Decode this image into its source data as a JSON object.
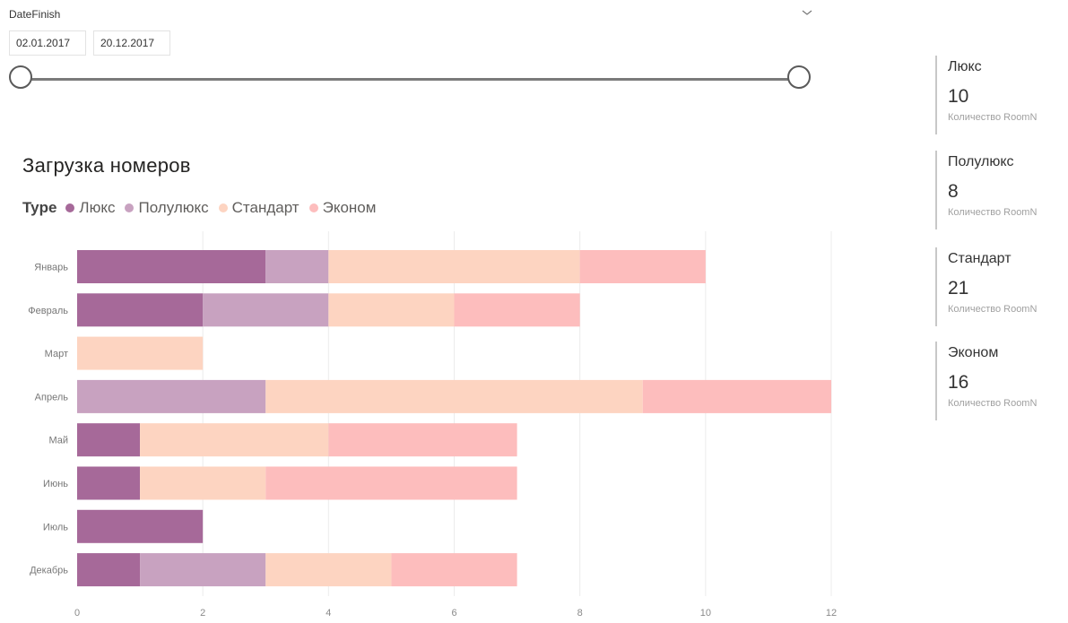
{
  "slicer": {
    "title": "DateFinish",
    "start_date": "02.01.2017",
    "end_date": "20.12.2017",
    "range_selected": [
      0,
      1
    ]
  },
  "chart_data": {
    "type": "bar",
    "orientation": "horizontal",
    "stacked": true,
    "title": "Загрузка номеров",
    "legend_title": "Type",
    "legend_position": "top-left",
    "categories": [
      "Январь",
      "Февраль",
      "Март",
      "Апрель",
      "Май",
      "Июнь",
      "Июль",
      "Декабрь"
    ],
    "series": [
      {
        "name": "Люкс",
        "color": "#a66999",
        "values": [
          3,
          2,
          0,
          0,
          1,
          1,
          2,
          1
        ]
      },
      {
        "name": "Полулюкс",
        "color": "#c8a2c0",
        "values": [
          1,
          2,
          0,
          3,
          0,
          0,
          0,
          2
        ]
      },
      {
        "name": "Стандарт",
        "color": "#fdd4c1",
        "values": [
          4,
          2,
          2,
          6,
          3,
          2,
          0,
          2
        ]
      },
      {
        "name": "Эконом",
        "color": "#fdbdbd",
        "values": [
          2,
          2,
          0,
          3,
          3,
          4,
          0,
          2
        ]
      }
    ],
    "xlim": [
      0,
      12
    ],
    "xticks": [
      0,
      2,
      4,
      6,
      8,
      10,
      12
    ],
    "xlabel": "",
    "ylabel": "",
    "grid": true
  },
  "cards": [
    {
      "title": "Люкс",
      "value": "10",
      "subtitle": "Количество RoomN"
    },
    {
      "title": "Полулюкс",
      "value": "8",
      "subtitle": "Количество RoomN"
    },
    {
      "title": "Стандарт",
      "value": "21",
      "subtitle": "Количество RoomN"
    },
    {
      "title": "Эконом",
      "value": "16",
      "subtitle": "Количество RoomN"
    }
  ],
  "icons": {
    "slicer_toggle": "chevron-down-icon"
  }
}
